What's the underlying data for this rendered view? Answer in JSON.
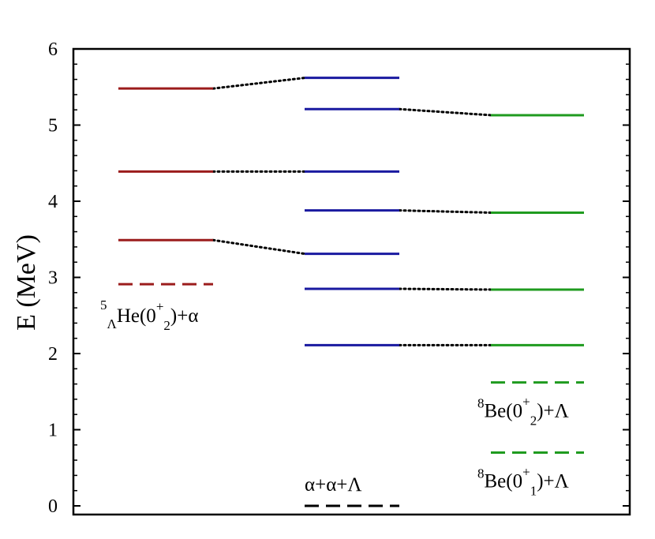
{
  "chart_data": {
    "type": "level-diagram",
    "ylabel": "E (MeV)",
    "ylim": [
      0,
      6
    ],
    "yticks": [
      0,
      1,
      2,
      3,
      4,
      5,
      6
    ],
    "grid": false,
    "colors": {
      "he": "#9b1c1c",
      "aal": "#1a1aa0",
      "be": "#1f9b1f",
      "threshold": "#000000",
      "link": "#000000"
    },
    "columns": [
      {
        "id": "he",
        "levels": [
          3.49,
          4.39,
          5.48
        ],
        "thresholds": [
          {
            "e": 2.91,
            "label": {
              "pre": "5",
              "sub1": "Λ",
              "main": "He(0",
              "sup": "+",
              "sub2": "2",
              "post": ")+α"
            }
          }
        ]
      },
      {
        "id": "aal",
        "levels": [
          2.11,
          2.85,
          3.31,
          3.88,
          4.39,
          5.21,
          5.62
        ],
        "thresholds": [
          {
            "e": 0.0,
            "label": {
              "pre": "",
              "sub1": "",
              "main": "α+α+Λ",
              "sup": "",
              "sub2": "",
              "post": ""
            }
          }
        ]
      },
      {
        "id": "be",
        "levels": [
          2.11,
          2.84,
          3.85,
          5.13
        ],
        "thresholds": [
          {
            "e": 1.62,
            "label": {
              "pre": "8",
              "sub1": "",
              "main": "Be(0",
              "sup": "+",
              "sub2": "2",
              "post": ")+Λ"
            }
          },
          {
            "e": 0.7,
            "label": {
              "pre": "8",
              "sub1": "",
              "main": "Be(0",
              "sup": "+",
              "sub2": "1",
              "post": ")+Λ"
            }
          }
        ]
      }
    ],
    "links": [
      {
        "from": [
          "he",
          5.48
        ],
        "to": [
          "aal",
          5.62
        ]
      },
      {
        "from": [
          "he",
          4.39
        ],
        "to": [
          "aal",
          4.39
        ]
      },
      {
        "from": [
          "he",
          3.49
        ],
        "to": [
          "aal",
          3.31
        ]
      },
      {
        "from": [
          "aal",
          5.21
        ],
        "to": [
          "be",
          5.13
        ]
      },
      {
        "from": [
          "aal",
          3.88
        ],
        "to": [
          "be",
          3.85
        ]
      },
      {
        "from": [
          "aal",
          2.85
        ],
        "to": [
          "be",
          2.84
        ]
      },
      {
        "from": [
          "aal",
          2.11
        ],
        "to": [
          "be",
          2.11
        ]
      }
    ]
  }
}
